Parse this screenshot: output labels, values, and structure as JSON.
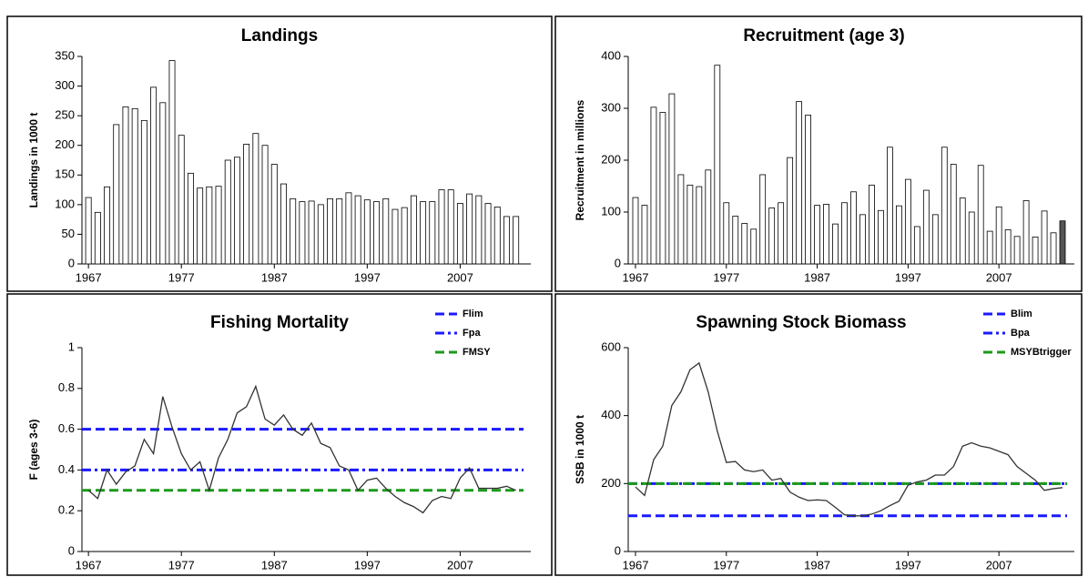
{
  "chart_data": [
    {
      "type": "bar",
      "title": "Landings",
      "y_label": "Landings in 1000 t",
      "x": [
        1967,
        1968,
        1969,
        1970,
        1971,
        1972,
        1973,
        1974,
        1975,
        1976,
        1977,
        1978,
        1979,
        1980,
        1981,
        1982,
        1983,
        1984,
        1985,
        1986,
        1987,
        1988,
        1989,
        1990,
        1991,
        1992,
        1993,
        1994,
        1995,
        1996,
        1997,
        1998,
        1999,
        2000,
        2001,
        2002,
        2003,
        2004,
        2005,
        2006,
        2007,
        2008,
        2009,
        2010,
        2011,
        2012,
        2013
      ],
      "values": [
        112,
        87,
        130,
        235,
        265,
        262,
        242,
        298,
        272,
        343,
        217,
        153,
        128,
        130,
        131,
        175,
        180,
        202,
        220,
        200,
        168,
        135,
        110,
        105,
        106,
        100,
        110,
        110,
        120,
        115,
        108,
        105,
        110,
        92,
        95,
        115,
        105,
        105,
        125,
        125,
        102,
        118,
        115,
        102,
        96,
        80,
        80
      ],
      "color": "#ffffff",
      "xlim": [
        1966.3,
        2014.6
      ],
      "xticks": [
        1967,
        1977,
        1987,
        1997,
        2007
      ],
      "ylim": [
        0,
        350
      ],
      "yticks": [
        0,
        50,
        100,
        150,
        200,
        250,
        300,
        350
      ]
    },
    {
      "type": "bar",
      "title": "Recruitment (age 3)",
      "y_label": "Recruitment in millions",
      "x": [
        1967,
        1968,
        1969,
        1970,
        1971,
        1972,
        1973,
        1974,
        1975,
        1976,
        1977,
        1978,
        1979,
        1980,
        1981,
        1982,
        1983,
        1984,
        1985,
        1986,
        1987,
        1988,
        1989,
        1990,
        1991,
        1992,
        1993,
        1994,
        1995,
        1996,
        1997,
        1998,
        1999,
        2000,
        2001,
        2002,
        2003,
        2004,
        2005,
        2006,
        2007,
        2008,
        2009,
        2010,
        2011,
        2012,
        2013,
        2014
      ],
      "values": [
        128,
        113,
        302,
        292,
        328,
        172,
        152,
        149,
        181,
        383,
        118,
        92,
        78,
        67,
        172,
        108,
        118,
        205,
        313,
        287,
        113,
        115,
        77,
        118,
        139,
        95,
        152,
        103,
        225,
        112,
        163,
        72,
        142,
        95,
        225,
        192,
        127,
        100,
        190,
        63,
        110,
        66,
        53,
        122,
        52,
        102,
        60,
        83
      ],
      "color": "#ffffff",
      "last_color": "#555555",
      "xlim": [
        1966.2,
        2015.3
      ],
      "xticks": [
        1967,
        1977,
        1987,
        1997,
        2007
      ],
      "ylim": [
        0,
        400
      ],
      "yticks": [
        0,
        100,
        200,
        300,
        400
      ]
    },
    {
      "type": "line",
      "title": "Fishing Mortality",
      "y_label": "F (ages 3-6)",
      "x": [
        1967,
        1968,
        1969,
        1970,
        1971,
        1972,
        1973,
        1974,
        1975,
        1976,
        1977,
        1978,
        1979,
        1980,
        1981,
        1982,
        1983,
        1984,
        1985,
        1986,
        1987,
        1988,
        1989,
        1990,
        1991,
        1992,
        1993,
        1994,
        1995,
        1996,
        1997,
        1998,
        1999,
        2000,
        2001,
        2002,
        2003,
        2004,
        2005,
        2006,
        2007,
        2008,
        2009,
        2010,
        2011,
        2012,
        2013
      ],
      "values": [
        0.3,
        0.26,
        0.4,
        0.33,
        0.39,
        0.42,
        0.55,
        0.48,
        0.76,
        0.61,
        0.48,
        0.4,
        0.44,
        0.3,
        0.46,
        0.55,
        0.68,
        0.71,
        0.81,
        0.65,
        0.62,
        0.67,
        0.6,
        0.57,
        0.63,
        0.53,
        0.51,
        0.42,
        0.4,
        0.3,
        0.35,
        0.36,
        0.31,
        0.27,
        0.24,
        0.22,
        0.19,
        0.25,
        0.27,
        0.26,
        0.36,
        0.41,
        0.31,
        0.31,
        0.31,
        0.32,
        0.3
      ],
      "color": "#333333",
      "ref_lines": [
        {
          "name": "Flim",
          "value": 0.6,
          "color": "#1a1aff",
          "dash": "dashed"
        },
        {
          "name": "Fpa",
          "value": 0.4,
          "color": "#1a1aff",
          "dash": "dashdot"
        },
        {
          "name": "FMSY",
          "value": 0.3,
          "color": "#1a9a1a",
          "dash": "dashed"
        }
      ],
      "xlim": [
        1966.3,
        2014.6
      ],
      "xticks": [
        1967,
        1977,
        1987,
        1997,
        2007
      ],
      "ylim": [
        0,
        1
      ],
      "yticks": [
        0,
        0.2,
        0.4,
        0.6,
        0.8,
        1
      ]
    },
    {
      "type": "line",
      "title": "Spawning Stock Biomass",
      "y_label": "SSB in 1000 t",
      "x": [
        1967,
        1968,
        1969,
        1970,
        1971,
        1972,
        1973,
        1974,
        1975,
        1976,
        1977,
        1978,
        1979,
        1980,
        1981,
        1982,
        1983,
        1984,
        1985,
        1986,
        1987,
        1988,
        1989,
        1990,
        1991,
        1992,
        1993,
        1994,
        1995,
        1996,
        1997,
        1998,
        1999,
        2000,
        2001,
        2002,
        2003,
        2004,
        2005,
        2006,
        2007,
        2008,
        2009,
        2010,
        2011,
        2012,
        2013,
        2014
      ],
      "values": [
        190,
        165,
        270,
        310,
        430,
        470,
        535,
        555,
        470,
        355,
        262,
        265,
        240,
        235,
        240,
        210,
        215,
        175,
        160,
        150,
        152,
        150,
        130,
        108,
        105,
        105,
        110,
        120,
        135,
        148,
        195,
        205,
        210,
        225,
        225,
        250,
        310,
        320,
        310,
        305,
        295,
        285,
        250,
        230,
        210,
        180,
        185,
        188
      ],
      "color": "#333333",
      "ref_lines": [
        {
          "name": "Blim",
          "value": 105,
          "color": "#1a1aff",
          "dash": "dashed"
        },
        {
          "name": "Bpa",
          "value": 200,
          "color": "#1a1aff",
          "dash": "dashdot"
        },
        {
          "name": "MSYBtrigger",
          "value": 200,
          "color": "#1a9a1a",
          "dash": "dashed"
        }
      ],
      "xlim": [
        1966.2,
        2015.3
      ],
      "xticks": [
        1967,
        1977,
        1987,
        1997,
        2007
      ],
      "ylim": [
        0,
        600
      ],
      "yticks": [
        0,
        200,
        400,
        600
      ]
    }
  ]
}
